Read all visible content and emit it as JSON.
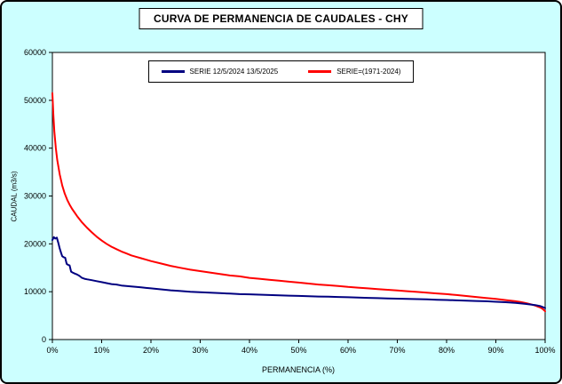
{
  "colors": {
    "background": "#CCFFFF",
    "plot_background": "#FFFFFF",
    "border": "#000000"
  },
  "chart_data": {
    "type": "line",
    "title": "CURVA DE PERMANENCIA DE CAUDALES - CHY",
    "xlabel": "PERMANENCIA (%)",
    "ylabel": "CAUDAL (m3/s)",
    "xlim": [
      0,
      100
    ],
    "ylim": [
      0,
      60000
    ],
    "grid": false,
    "legend_position": "top-center-inside",
    "x_ticks": [
      "0%",
      "10%",
      "20%",
      "30%",
      "40%",
      "50%",
      "60%",
      "70%",
      "80%",
      "90%",
      "100%"
    ],
    "x_tick_values": [
      0,
      10,
      20,
      30,
      40,
      50,
      60,
      70,
      80,
      90,
      100
    ],
    "y_ticks": [
      "0",
      "10000",
      "20000",
      "30000",
      "40000",
      "50000",
      "60000"
    ],
    "y_tick_values": [
      0,
      10000,
      20000,
      30000,
      40000,
      50000,
      60000
    ],
    "series": [
      {
        "name": "SERIE 12/5/2024 13/5/2025",
        "color": "#000080",
        "points": [
          [
            0,
            20800
          ],
          [
            0.3,
            21400
          ],
          [
            0.6,
            21100
          ],
          [
            0.9,
            21300
          ],
          [
            1.2,
            20200
          ],
          [
            1.5,
            19000
          ],
          [
            1.8,
            18000
          ],
          [
            2,
            17400
          ],
          [
            2.3,
            17200
          ],
          [
            2.6,
            17100
          ],
          [
            2.9,
            15800
          ],
          [
            3.2,
            15600
          ],
          [
            3.5,
            15500
          ],
          [
            3.8,
            14200
          ],
          [
            4.1,
            14000
          ],
          [
            4.5,
            13800
          ],
          [
            5,
            13600
          ],
          [
            5.5,
            13300
          ],
          [
            6,
            12900
          ],
          [
            6.5,
            12700
          ],
          [
            7,
            12600
          ],
          [
            7.5,
            12500
          ],
          [
            8,
            12400
          ],
          [
            9,
            12200
          ],
          [
            10,
            12000
          ],
          [
            11,
            11800
          ],
          [
            12,
            11600
          ],
          [
            13,
            11500
          ],
          [
            14,
            11300
          ],
          [
            15,
            11200
          ],
          [
            16,
            11100
          ],
          [
            17,
            11000
          ],
          [
            18,
            10900
          ],
          [
            19,
            10800
          ],
          [
            20,
            10700
          ],
          [
            22,
            10500
          ],
          [
            24,
            10300
          ],
          [
            26,
            10150
          ],
          [
            28,
            10000
          ],
          [
            30,
            9900
          ],
          [
            32,
            9800
          ],
          [
            34,
            9700
          ],
          [
            36,
            9600
          ],
          [
            38,
            9500
          ],
          [
            40,
            9450
          ],
          [
            42,
            9380
          ],
          [
            44,
            9300
          ],
          [
            46,
            9250
          ],
          [
            48,
            9180
          ],
          [
            50,
            9120
          ],
          [
            52,
            9050
          ],
          [
            54,
            9000
          ],
          [
            56,
            8950
          ],
          [
            58,
            8900
          ],
          [
            60,
            8850
          ],
          [
            62,
            8780
          ],
          [
            64,
            8720
          ],
          [
            66,
            8660
          ],
          [
            68,
            8600
          ],
          [
            70,
            8550
          ],
          [
            72,
            8500
          ],
          [
            74,
            8450
          ],
          [
            76,
            8400
          ],
          [
            78,
            8330
          ],
          [
            80,
            8270
          ],
          [
            82,
            8200
          ],
          [
            84,
            8130
          ],
          [
            86,
            8060
          ],
          [
            88,
            8000
          ],
          [
            90,
            7900
          ],
          [
            92,
            7800
          ],
          [
            94,
            7650
          ],
          [
            96,
            7450
          ],
          [
            98,
            7200
          ],
          [
            99,
            7000
          ],
          [
            100,
            6600
          ]
        ]
      },
      {
        "name": "SERIE=(1971-2024)",
        "color": "#FF0000",
        "points": [
          [
            0,
            51500
          ],
          [
            0.2,
            47000
          ],
          [
            0.4,
            43500
          ],
          [
            0.7,
            40000
          ],
          [
            1,
            37500
          ],
          [
            1.5,
            34500
          ],
          [
            2,
            32200
          ],
          [
            2.5,
            30500
          ],
          [
            3,
            29200
          ],
          [
            3.5,
            28200
          ],
          [
            4,
            27300
          ],
          [
            5,
            25800
          ],
          [
            6,
            24500
          ],
          [
            7,
            23400
          ],
          [
            8,
            22400
          ],
          [
            9,
            21500
          ],
          [
            10,
            20700
          ],
          [
            11,
            20000
          ],
          [
            12,
            19400
          ],
          [
            13,
            18900
          ],
          [
            14,
            18400
          ],
          [
            15,
            18000
          ],
          [
            16,
            17600
          ],
          [
            17,
            17300
          ],
          [
            18,
            17000
          ],
          [
            19,
            16700
          ],
          [
            20,
            16400
          ],
          [
            22,
            15900
          ],
          [
            24,
            15400
          ],
          [
            26,
            15000
          ],
          [
            28,
            14600
          ],
          [
            30,
            14300
          ],
          [
            32,
            14000
          ],
          [
            34,
            13700
          ],
          [
            36,
            13400
          ],
          [
            38,
            13200
          ],
          [
            40,
            12900
          ],
          [
            42,
            12700
          ],
          [
            44,
            12500
          ],
          [
            46,
            12300
          ],
          [
            48,
            12100
          ],
          [
            50,
            11900
          ],
          [
            52,
            11700
          ],
          [
            54,
            11500
          ],
          [
            56,
            11350
          ],
          [
            58,
            11200
          ],
          [
            60,
            11000
          ],
          [
            62,
            10850
          ],
          [
            64,
            10700
          ],
          [
            66,
            10550
          ],
          [
            68,
            10400
          ],
          [
            70,
            10250
          ],
          [
            72,
            10100
          ],
          [
            74,
            9950
          ],
          [
            76,
            9800
          ],
          [
            78,
            9650
          ],
          [
            80,
            9500
          ],
          [
            82,
            9300
          ],
          [
            84,
            9100
          ],
          [
            86,
            8900
          ],
          [
            88,
            8700
          ],
          [
            90,
            8500
          ],
          [
            92,
            8250
          ],
          [
            94,
            8000
          ],
          [
            95,
            7850
          ],
          [
            96,
            7650
          ],
          [
            97,
            7400
          ],
          [
            98,
            7100
          ],
          [
            99,
            6700
          ],
          [
            99.5,
            6400
          ],
          [
            100,
            5900
          ]
        ]
      }
    ]
  }
}
